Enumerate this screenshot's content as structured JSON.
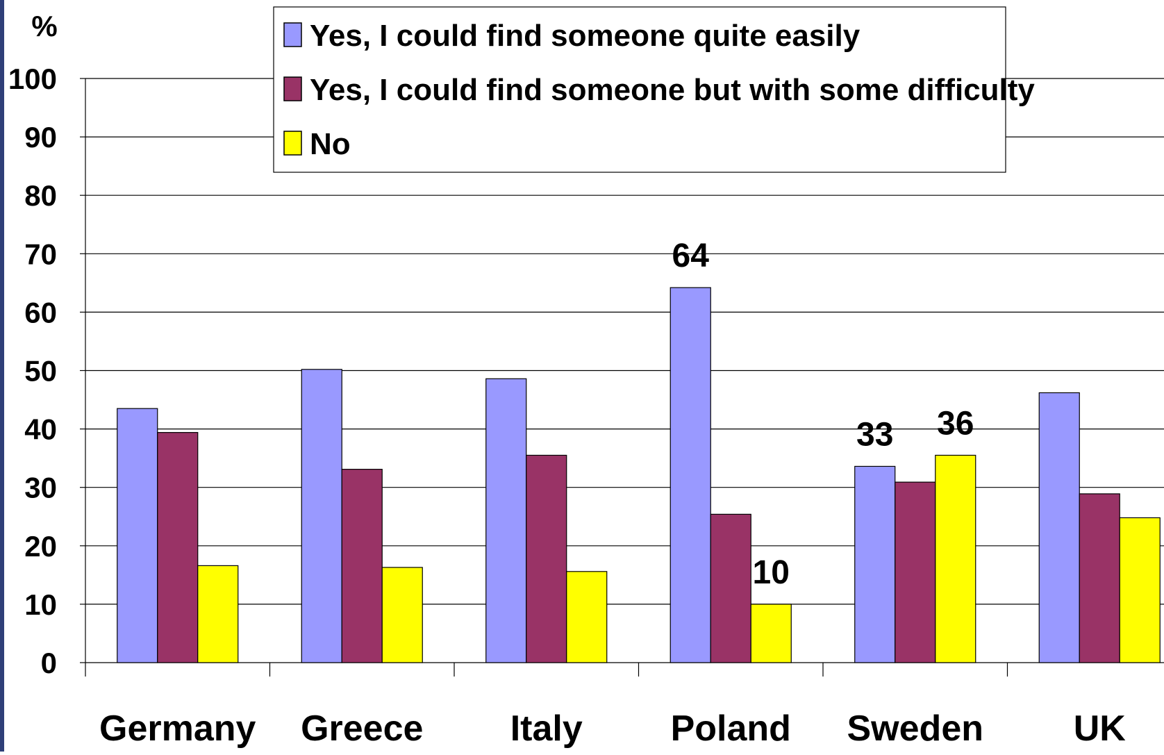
{
  "chart_data": {
    "type": "bar",
    "title": "",
    "ylabel": "%",
    "xlabel": "",
    "ylim": [
      0,
      100
    ],
    "yticks": [
      0,
      10,
      20,
      30,
      40,
      50,
      60,
      70,
      80,
      90,
      100
    ],
    "grid": true,
    "legend_position": "top",
    "categories": [
      "Germany",
      "Greece",
      "Italy",
      "Poland",
      "Sweden",
      "UK"
    ],
    "series": [
      {
        "name": "Yes, I could find someone quite easily",
        "color": "#9999ff",
        "values": [
          43.5,
          50.2,
          48.6,
          64.2,
          33.6,
          46.2
        ]
      },
      {
        "name": "Yes, I could find someone but with some difficulty",
        "color": "#993366",
        "values": [
          39.4,
          33.1,
          35.5,
          25.4,
          30.9,
          28.9
        ]
      },
      {
        "name": "No",
        "color": "#ffff00",
        "values": [
          16.6,
          16.3,
          15.6,
          10.0,
          35.5,
          24.8
        ]
      }
    ],
    "data_labels": [
      {
        "category": "Poland",
        "series": 0,
        "text": "64"
      },
      {
        "category": "Poland",
        "series": 2,
        "text": "10"
      },
      {
        "category": "Sweden",
        "series": 0,
        "text": "33"
      },
      {
        "category": "Sweden",
        "series": 2,
        "text": "36"
      }
    ]
  }
}
